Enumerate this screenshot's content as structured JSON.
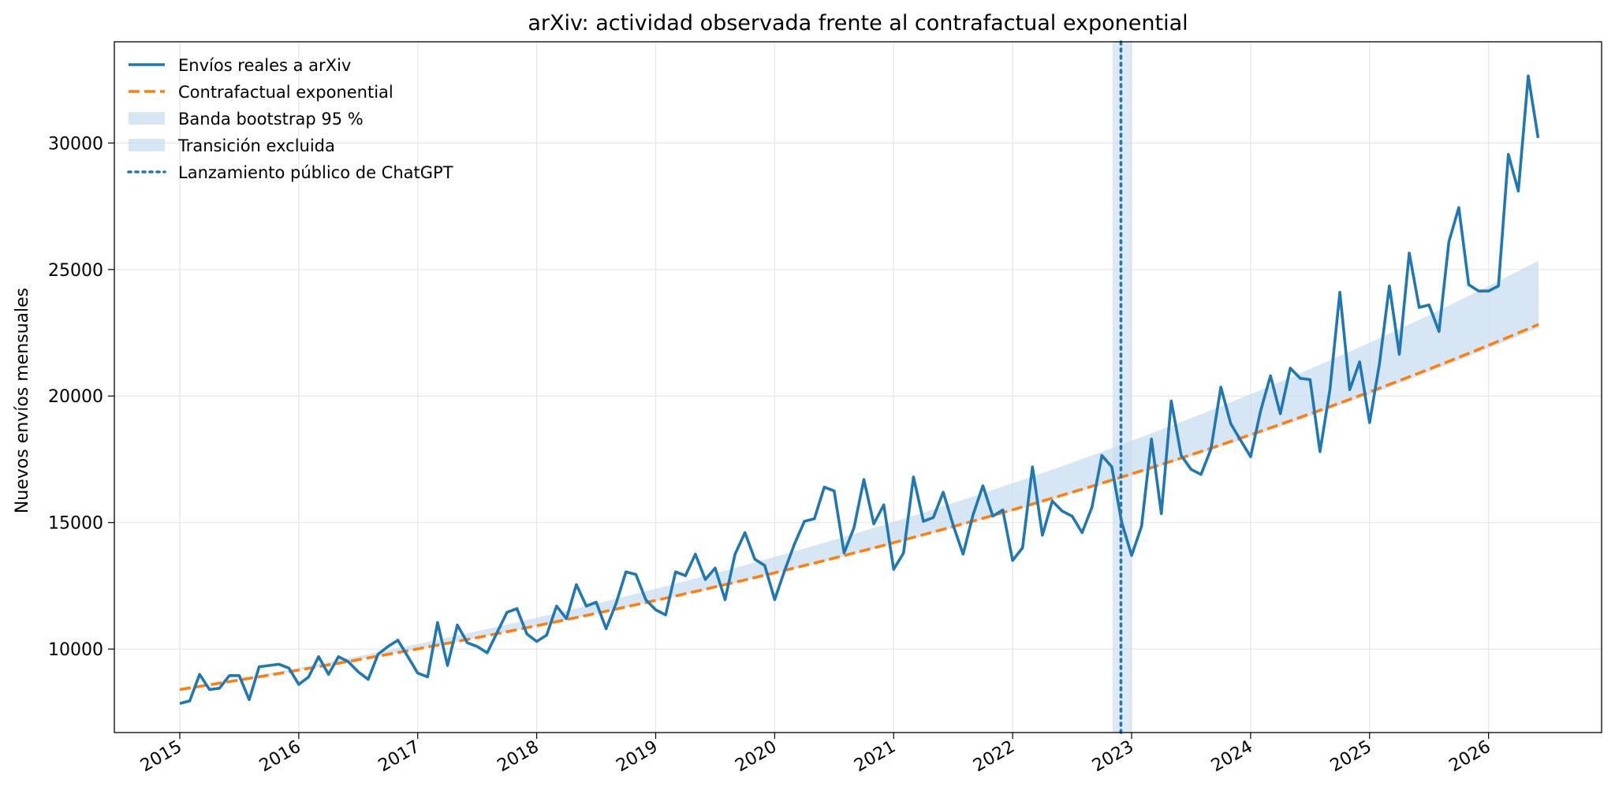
{
  "chart_data": {
    "type": "line",
    "title": "arXiv: actividad observada frente al contrafactual exponential",
    "xlabel": "",
    "ylabel": "Nuevos envíos mensuales",
    "xlim": [
      2014.45,
      2026.95
    ],
    "ylim": [
      6700,
      34000
    ],
    "x_ticks": [
      2015,
      2016,
      2017,
      2018,
      2019,
      2020,
      2021,
      2022,
      2023,
      2024,
      2025,
      2026
    ],
    "x_tick_labels": [
      "2015",
      "2016",
      "2017",
      "2018",
      "2019",
      "2020",
      "2021",
      "2022",
      "2023",
      "2024",
      "2025",
      "2026"
    ],
    "y_ticks": [
      10000,
      15000,
      20000,
      25000,
      30000
    ],
    "y_tick_labels": [
      "10000",
      "15000",
      "20000",
      "25000",
      "30000"
    ],
    "grid": true,
    "legend_position": "top-left",
    "legend": [
      {
        "key": "actual",
        "label": "Envíos reales a arXiv"
      },
      {
        "key": "counterfactual",
        "label": "Contrafactual exponential"
      },
      {
        "key": "band",
        "label": "Banda bootstrap 95 %"
      },
      {
        "key": "transition",
        "label": "Transición excluida"
      },
      {
        "key": "chatgpt",
        "label": "Lanzamiento público de ChatGPT"
      }
    ],
    "colors": {
      "actual": "#1f77b4",
      "counterfactual": "#ff7f0e",
      "band": "#c6dbef",
      "transition": "#c6dbef",
      "chatgpt": "#1f77b4"
    },
    "series_actual": {
      "start": "2015-01",
      "step": "month",
      "values": [
        7850,
        7950,
        9000,
        8400,
        8450,
        8950,
        8950,
        8000,
        9300,
        9350,
        9400,
        9250,
        8600,
        8900,
        9700,
        9000,
        9700,
        9500,
        9100,
        8800,
        9800,
        10100,
        10350,
        9700,
        9050,
        8900,
        11050,
        9350,
        10950,
        10250,
        10100,
        9850,
        10650,
        11450,
        11600,
        10600,
        10300,
        10550,
        11700,
        11200,
        12550,
        11700,
        11850,
        10800,
        11800,
        13050,
        12950,
        11950,
        11550,
        11350,
        13050,
        12900,
        13750,
        12750,
        13200,
        11950,
        13750,
        14600,
        13550,
        13300,
        11950,
        13100,
        14150,
        15050,
        15150,
        16400,
        16250,
        13800,
        14800,
        16700,
        14950,
        15700,
        13150,
        13800,
        16800,
        15050,
        15200,
        16200,
        14900,
        13750,
        15300,
        16450,
        15250,
        15500,
        13500,
        14000,
        17200,
        14500,
        15850,
        15450,
        15250,
        14600,
        15600,
        17650,
        17200,
        15000,
        13700,
        14850,
        18300,
        15350,
        19800,
        17650,
        17100,
        16900,
        17900,
        20350,
        18900,
        18250,
        17600,
        19400,
        20800,
        19300,
        21100,
        20700,
        20650,
        17800,
        20250,
        24100,
        20250,
        21350,
        18950,
        21300,
        24350,
        21650,
        25650,
        23500,
        23600,
        22550,
        26100,
        27450,
        24400,
        24150,
        24150,
        24350,
        29550,
        28100,
        32650,
        30200
      ]
    },
    "counterfactual": {
      "x_start": 2015.0,
      "x_end": 2026.42,
      "y_start": 8400,
      "annual_growth_rate": 0.0915
    },
    "band": {
      "lower_2015": 8400,
      "upper_2015": 8400,
      "lower_2026_5": 22700,
      "upper_2026_5": 25350
    },
    "transition": {
      "x_start": 2022.84,
      "x_end": 2023.0
    },
    "chatgpt_launch": 2022.91
  }
}
